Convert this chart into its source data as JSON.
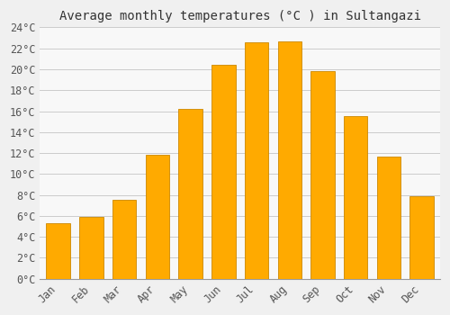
{
  "title": "Average monthly temperatures (°C ) in Sultangazi",
  "months": [
    "Jan",
    "Feb",
    "Mar",
    "Apr",
    "May",
    "Jun",
    "Jul",
    "Aug",
    "Sep",
    "Oct",
    "Nov",
    "Dec"
  ],
  "temperatures": [
    5.3,
    5.9,
    7.5,
    11.8,
    16.2,
    20.4,
    22.6,
    22.7,
    19.8,
    15.5,
    11.7,
    7.9
  ],
  "bar_color": "#FFAA00",
  "bar_edge_color": "#CC8800",
  "background_color": "#F0F0F0",
  "plot_bg_color": "#F8F8F8",
  "grid_color": "#CCCCCC",
  "ytick_step": 2,
  "ymax": 24,
  "ymin": 0,
  "title_fontsize": 10,
  "tick_fontsize": 8.5,
  "font_family": "monospace"
}
